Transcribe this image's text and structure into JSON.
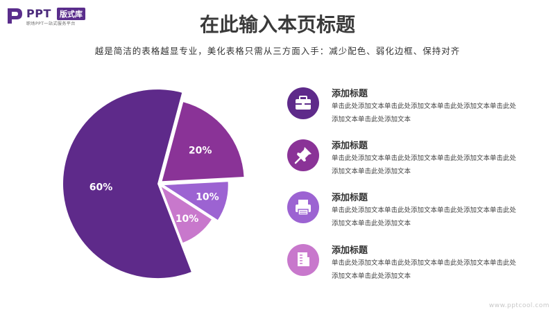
{
  "brand": {
    "logo_text": "PPT",
    "badge": "版式库",
    "tagline": "职场PPT一站式服务平台"
  },
  "header": {
    "title": "在此输入本页标题",
    "subtitle": "越是简洁的表格越显专业，美化表格只需从三方面入手：减少配色、弱化边框、保持对齐"
  },
  "chart_data": {
    "type": "pie",
    "slices": [
      {
        "label": "20%",
        "value": 20,
        "color": "#8a3397"
      },
      {
        "label": "10%",
        "value": 10,
        "color": "#9c63d2"
      },
      {
        "label": "10%",
        "value": 10,
        "color": "#c878cc"
      },
      {
        "label": "60%",
        "value": 60,
        "color": "#5e2a8a"
      }
    ]
  },
  "items": [
    {
      "title": "添加标题",
      "text": "单击此处添加文本单击此处添加文本单击此处添加文本单击此处添加文本单击此处添加文本",
      "icon": "briefcase-icon",
      "color": "#5e2a8a"
    },
    {
      "title": "添加标题",
      "text": "单击此处添加文本单击此处添加文本单击此处添加文本单击此处添加文本单击此处添加文本",
      "icon": "pushpin-icon",
      "color": "#8a3397"
    },
    {
      "title": "添加标题",
      "text": "单击此处添加文本单击此处添加文本单击此处添加文本单击此处添加文本单击此处添加文本",
      "icon": "printer-icon",
      "color": "#9c63d2"
    },
    {
      "title": "添加标题",
      "text": "单击此处添加文本单击此处添加文本单击此处添加文本单击此处添加文本单击此处添加文本",
      "icon": "document-icon",
      "color": "#c878cc"
    }
  ],
  "watermark": "www.pptcool.com"
}
